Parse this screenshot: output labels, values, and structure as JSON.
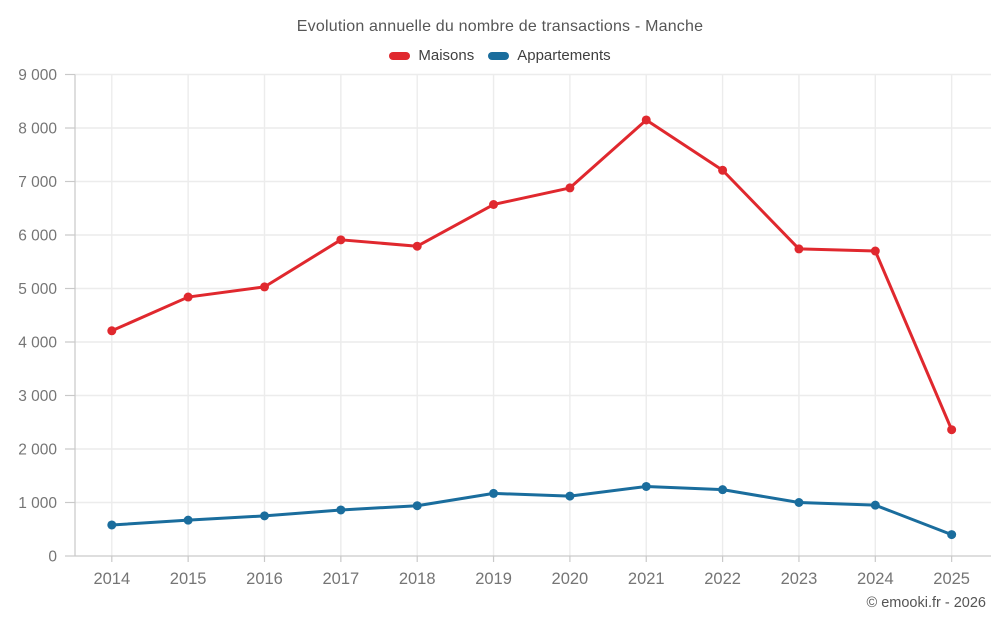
{
  "header": {
    "title": "Evolution annuelle du nombre de transactions - Manche"
  },
  "legend": {
    "items": [
      {
        "label": "Maisons",
        "color": "#e0282e"
      },
      {
        "label": "Appartements",
        "color": "#1a6d9d"
      }
    ]
  },
  "footer": {
    "copyright": "© emooki.fr - 2026"
  },
  "chart_data": {
    "type": "line",
    "title": "Evolution annuelle du nombre de transactions - Manche",
    "categories": [
      "2014",
      "2015",
      "2016",
      "2017",
      "2018",
      "2019",
      "2020",
      "2021",
      "2022",
      "2023",
      "2024",
      "2025"
    ],
    "series": [
      {
        "name": "Maisons",
        "color": "#e0282e",
        "values": [
          4210,
          4840,
          5030,
          5910,
          5790,
          6570,
          6880,
          8150,
          7210,
          5740,
          5700,
          2360
        ]
      },
      {
        "name": "Appartements",
        "color": "#1a6d9d",
        "values": [
          580,
          670,
          750,
          860,
          940,
          1170,
          1120,
          1300,
          1240,
          1000,
          950,
          400
        ]
      }
    ],
    "xlabel": "",
    "ylabel": "",
    "ylim": [
      0,
      9000
    ],
    "y_tick_step": 1000,
    "y_tick_labels": [
      "0",
      "1 000",
      "2 000",
      "3 000",
      "4 000",
      "5 000",
      "6 000",
      "7 000",
      "8 000",
      "9 000"
    ],
    "grid": true,
    "legend_position": "top"
  },
  "colors": {
    "background": "#ffffff",
    "grid": "#ececec",
    "axis": "#c9c9c9",
    "axis_text": "#757575",
    "title_text": "#565656",
    "legend_text": "#3f3f3f",
    "copyright_text": "#555555"
  }
}
